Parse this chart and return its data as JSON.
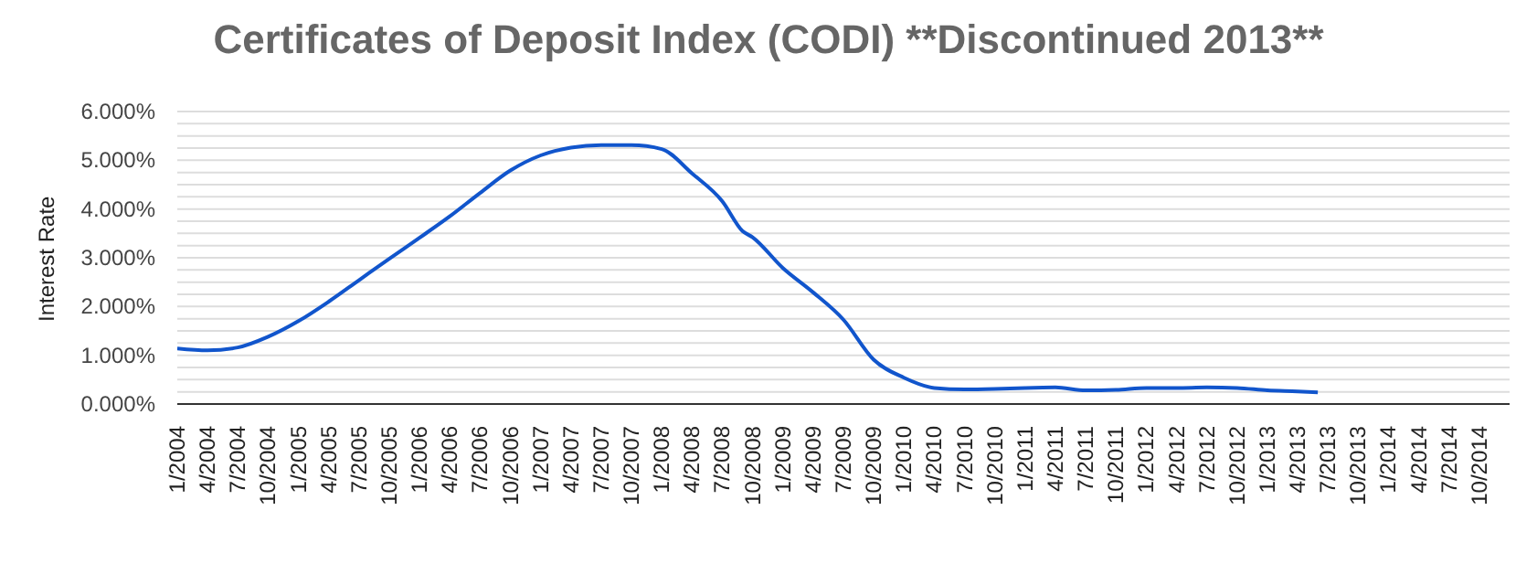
{
  "chart_data": {
    "type": "line",
    "title": "Certificates of Deposit Index (CODI) **Discontinued 2013**",
    "ylabel": "Interest Rate",
    "x": [
      "2004-01",
      "2004-04",
      "2004-07",
      "2004-10",
      "2005-01",
      "2005-04",
      "2005-07",
      "2005-10",
      "2006-01",
      "2006-04",
      "2006-07",
      "2006-10",
      "2007-01",
      "2007-04",
      "2007-07",
      "2007-10",
      "2008-01",
      "2008-04",
      "2008-07",
      "2008-09",
      "2008-10",
      "2009-01",
      "2009-04",
      "2009-07",
      "2009-10",
      "2010-01",
      "2010-04",
      "2010-07",
      "2010-10",
      "2011-01",
      "2011-04",
      "2011-07",
      "2011-10",
      "2012-01",
      "2012-04",
      "2012-07",
      "2012-10",
      "2013-01",
      "2013-04",
      "2013-06"
    ],
    "series": [
      {
        "color": "#1155cc",
        "values": [
          1.14,
          1.1,
          1.16,
          1.38,
          1.7,
          2.1,
          2.54,
          2.98,
          3.41,
          3.85,
          4.33,
          4.79,
          5.1,
          5.26,
          5.31,
          5.31,
          5.23,
          4.73,
          4.16,
          3.55,
          3.42,
          2.79,
          2.29,
          1.73,
          0.91,
          0.54,
          0.33,
          0.3,
          0.31,
          0.33,
          0.34,
          0.28,
          0.29,
          0.33,
          0.33,
          0.34,
          0.33,
          0.28,
          0.26,
          0.24
        ]
      }
    ],
    "xlim": [
      "2004-01",
      "2015-01"
    ],
    "xticks": [
      {
        "value": "2004-01",
        "label": "1/2004"
      },
      {
        "value": "2004-04",
        "label": "4/2004"
      },
      {
        "value": "2004-07",
        "label": "7/2004"
      },
      {
        "value": "2004-10",
        "label": "10/2004"
      },
      {
        "value": "2005-01",
        "label": "1/2005"
      },
      {
        "value": "2005-04",
        "label": "4/2005"
      },
      {
        "value": "2005-07",
        "label": "7/2005"
      },
      {
        "value": "2005-10",
        "label": "10/2005"
      },
      {
        "value": "2006-01",
        "label": "1/2006"
      },
      {
        "value": "2006-04",
        "label": "4/2006"
      },
      {
        "value": "2006-07",
        "label": "7/2006"
      },
      {
        "value": "2006-10",
        "label": "10/2006"
      },
      {
        "value": "2007-01",
        "label": "1/2007"
      },
      {
        "value": "2007-04",
        "label": "4/2007"
      },
      {
        "value": "2007-07",
        "label": "7/2007"
      },
      {
        "value": "2007-10",
        "label": "10/2007"
      },
      {
        "value": "2008-01",
        "label": "1/2008"
      },
      {
        "value": "2008-04",
        "label": "4/2008"
      },
      {
        "value": "2008-07",
        "label": "7/2008"
      },
      {
        "value": "2008-10",
        "label": "10/2008"
      },
      {
        "value": "2009-01",
        "label": "1/2009"
      },
      {
        "value": "2009-04",
        "label": "4/2009"
      },
      {
        "value": "2009-07",
        "label": "7/2009"
      },
      {
        "value": "2009-10",
        "label": "10/2009"
      },
      {
        "value": "2010-01",
        "label": "1/2010"
      },
      {
        "value": "2010-04",
        "label": "4/2010"
      },
      {
        "value": "2010-07",
        "label": "7/2010"
      },
      {
        "value": "2010-10",
        "label": "10/2010"
      },
      {
        "value": "2011-01",
        "label": "1/2011"
      },
      {
        "value": "2011-04",
        "label": "4/2011"
      },
      {
        "value": "2011-07",
        "label": "7/2011"
      },
      {
        "value": "2011-10",
        "label": "10/2011"
      },
      {
        "value": "2012-01",
        "label": "1/2012"
      },
      {
        "value": "2012-04",
        "label": "4/2012"
      },
      {
        "value": "2012-07",
        "label": "7/2012"
      },
      {
        "value": "2012-10",
        "label": "10/2012"
      },
      {
        "value": "2013-01",
        "label": "1/2013"
      },
      {
        "value": "2013-04",
        "label": "4/2013"
      },
      {
        "value": "2013-07",
        "label": "7/2013"
      },
      {
        "value": "2013-10",
        "label": "10/2013"
      },
      {
        "value": "2014-01",
        "label": "1/2014"
      },
      {
        "value": "2014-04",
        "label": "4/2014"
      },
      {
        "value": "2014-07",
        "label": "7/2014"
      },
      {
        "value": "2014-10",
        "label": "10/2014"
      }
    ],
    "ylim": [
      0,
      6
    ],
    "yticks": [
      {
        "value": 0,
        "label": "0.000%"
      },
      {
        "value": 0.25,
        "label": null
      },
      {
        "value": 0.5,
        "label": null
      },
      {
        "value": 0.75,
        "label": null
      },
      {
        "value": 1,
        "label": "1.000%"
      },
      {
        "value": 1.25,
        "label": null
      },
      {
        "value": 1.5,
        "label": null
      },
      {
        "value": 1.75,
        "label": null
      },
      {
        "value": 2,
        "label": "2.000%"
      },
      {
        "value": 2.25,
        "label": null
      },
      {
        "value": 2.5,
        "label": null
      },
      {
        "value": 2.75,
        "label": null
      },
      {
        "value": 3,
        "label": "3.000%"
      },
      {
        "value": 3.25,
        "label": null
      },
      {
        "value": 3.5,
        "label": null
      },
      {
        "value": 3.75,
        "label": null
      },
      {
        "value": 4,
        "label": "4.000%"
      },
      {
        "value": 4.25,
        "label": null
      },
      {
        "value": 4.5,
        "label": null
      },
      {
        "value": 4.75,
        "label": null
      },
      {
        "value": 5,
        "label": "5.000%"
      },
      {
        "value": 5.25,
        "label": null
      },
      {
        "value": 5.5,
        "label": null
      },
      {
        "value": 5.75,
        "label": null
      },
      {
        "value": 6,
        "label": "6.000%"
      }
    ],
    "grid": "y",
    "marker": "none",
    "line_style": "solid",
    "legend": false
  }
}
